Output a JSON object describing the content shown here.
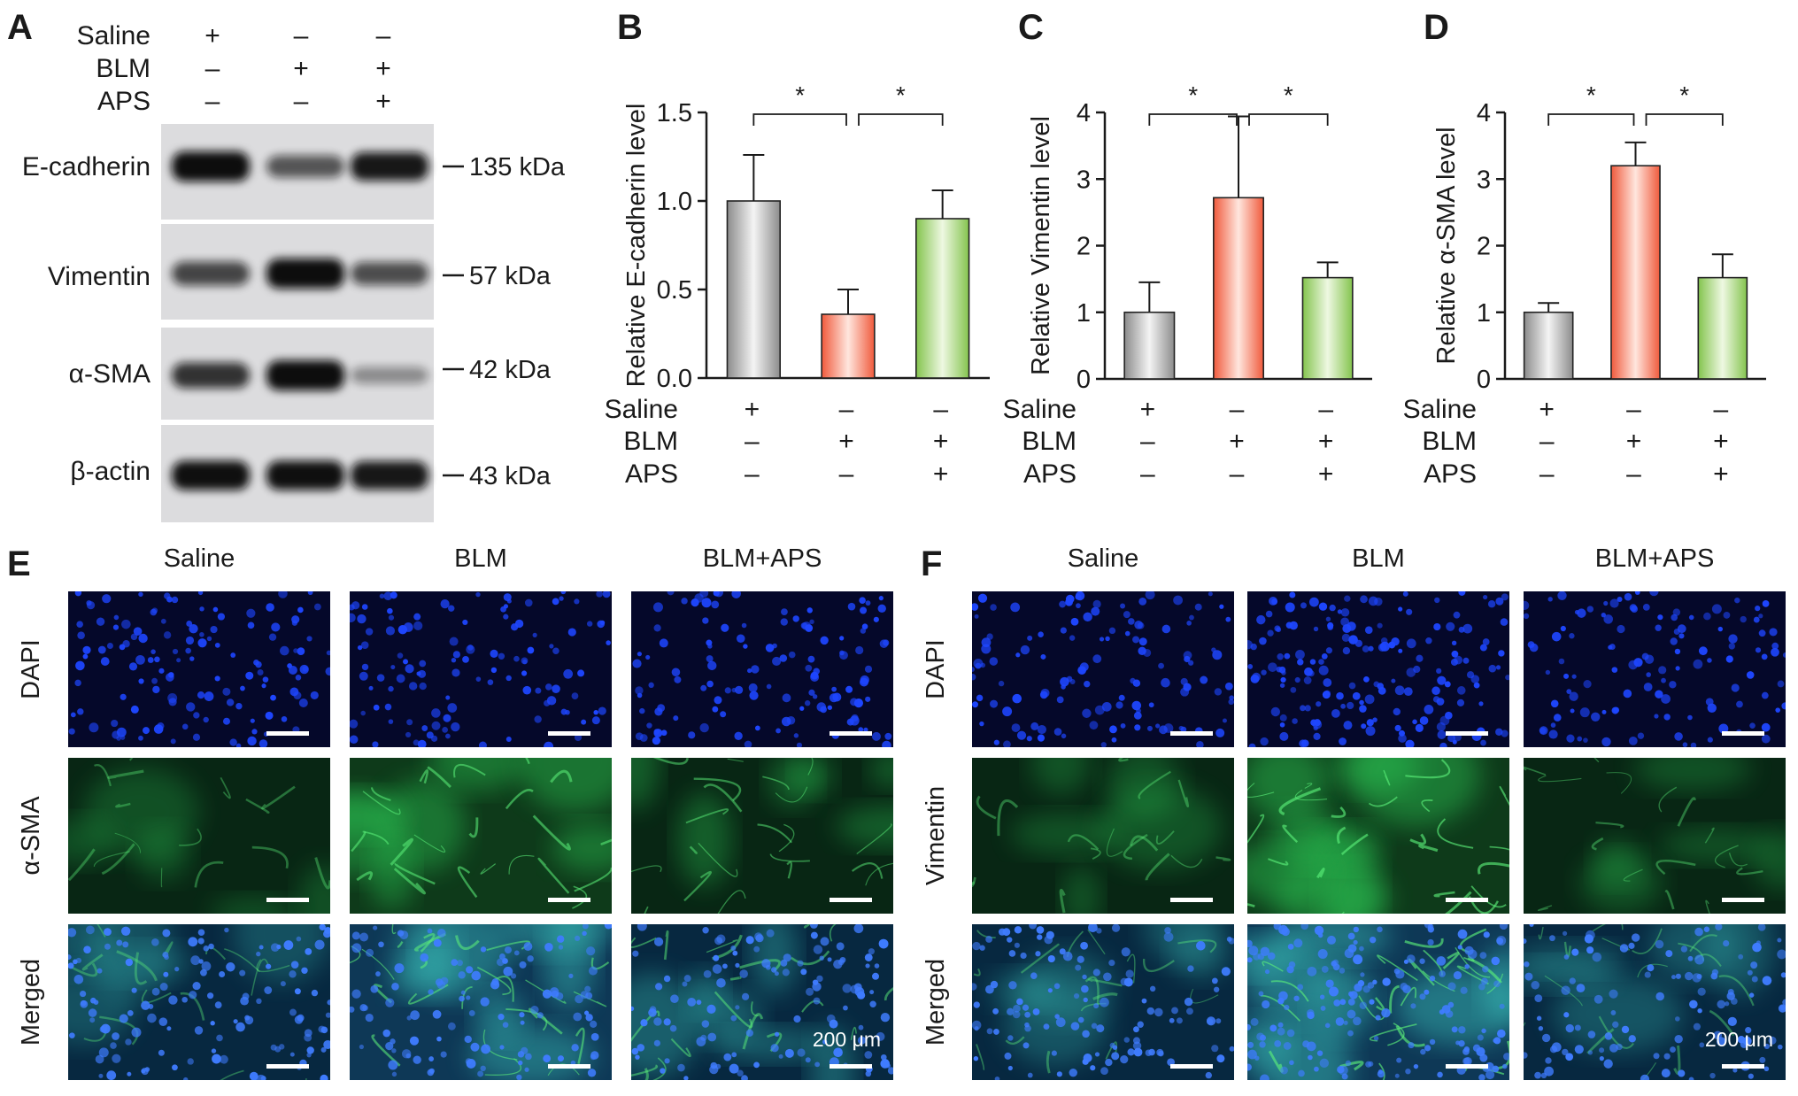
{
  "panel_letters": {
    "A": "A",
    "B": "B",
    "C": "C",
    "D": "D",
    "E": "E",
    "F": "F"
  },
  "conditions": {
    "rows": [
      "Saline",
      "BLM",
      "APS"
    ],
    "signs": [
      [
        "+",
        "–",
        "–"
      ],
      [
        "–",
        "+",
        "+"
      ],
      [
        "–",
        "–",
        "+"
      ]
    ]
  },
  "western_blot": {
    "bands": [
      {
        "protein": "E-cadherin",
        "kda": "135 kDa",
        "intensity": [
          1.0,
          0.55,
          0.9
        ]
      },
      {
        "protein": "Vimentin",
        "kda": "57 kDa",
        "intensity": [
          0.65,
          1.0,
          0.6
        ]
      },
      {
        "protein": "α-SMA",
        "kda": "42 kDa",
        "intensity": [
          0.75,
          1.0,
          0.25
        ]
      },
      {
        "protein": "β-actin",
        "kda": "43 kDa",
        "intensity": [
          0.95,
          0.95,
          0.9
        ]
      }
    ]
  },
  "colors": {
    "control_bar": "#c4c4c4",
    "blm_bar": "#f5836a",
    "aps_bar": "#9fd36b",
    "dapi": "#1030e0",
    "stain": "#2fd45a"
  },
  "chart_data": [
    {
      "type": "bar",
      "panel": "B",
      "categories": [
        "Saline",
        "BLM",
        "BLM+APS"
      ],
      "values": [
        1.0,
        0.36,
        0.9
      ],
      "errors": [
        0.26,
        0.14,
        0.16
      ],
      "ylabel": "Relative E-cadherin level",
      "ylim": [
        0,
        1.5
      ],
      "yticks": [
        "0.0",
        "0.5",
        "1.0",
        "1.5"
      ],
      "significance": [
        {
          "from": 0,
          "to": 1,
          "label": "*"
        },
        {
          "from": 1,
          "to": 2,
          "label": "*"
        }
      ]
    },
    {
      "type": "bar",
      "panel": "C",
      "categories": [
        "Saline",
        "BLM",
        "BLM+APS"
      ],
      "values": [
        1.0,
        2.72,
        1.52
      ],
      "errors": [
        0.45,
        1.22,
        0.23
      ],
      "ylabel": "Relative Vimentin level",
      "ylim": [
        0,
        4
      ],
      "yticks": [
        "0",
        "1",
        "2",
        "3",
        "4"
      ],
      "significance": [
        {
          "from": 0,
          "to": 1,
          "label": "*"
        },
        {
          "from": 1,
          "to": 2,
          "label": "*"
        }
      ]
    },
    {
      "type": "bar",
      "panel": "D",
      "categories": [
        "Saline",
        "BLM",
        "BLM+APS"
      ],
      "values": [
        1.0,
        3.2,
        1.52
      ],
      "errors": [
        0.14,
        0.35,
        0.35
      ],
      "ylabel": "Relative α-SMA level",
      "ylim": [
        0,
        4
      ],
      "yticks": [
        "0",
        "1",
        "2",
        "3",
        "4"
      ],
      "significance": [
        {
          "from": 0,
          "to": 1,
          "label": "*"
        },
        {
          "from": 1,
          "to": 2,
          "label": "*"
        }
      ]
    }
  ],
  "fluorescence": {
    "E": {
      "columns": [
        "Saline",
        "BLM",
        "BLM+APS"
      ],
      "rows": [
        "DAPI",
        "α-SMA",
        "Merged"
      ],
      "scale_bar": "200 μm",
      "blue_density": [
        0.55,
        0.45,
        0.5
      ],
      "green_intensity": [
        0.25,
        0.65,
        0.5
      ]
    },
    "F": {
      "columns": [
        "Saline",
        "BLM",
        "BLM+APS"
      ],
      "rows": [
        "DAPI",
        "Vimentin",
        "Merged"
      ],
      "scale_bar": "200 μm",
      "blue_density": [
        0.5,
        0.9,
        0.45
      ],
      "green_intensity": [
        0.3,
        0.75,
        0.3
      ]
    }
  }
}
